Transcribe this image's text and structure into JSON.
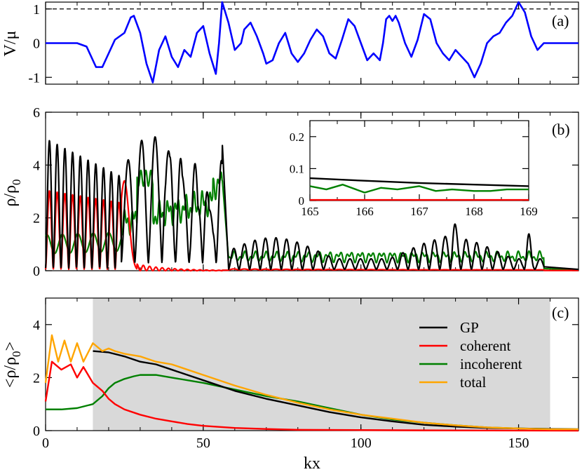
{
  "chart_data": [
    {
      "panel_label": "(a)",
      "type": "line",
      "ylabel": "V/μ",
      "xlim": [
        0,
        169
      ],
      "ylim": [
        -1.2,
        1.2
      ],
      "yticks": [
        -1,
        0,
        1
      ],
      "ytick_labels": [
        "-1",
        "0",
        "1"
      ],
      "reference_line": {
        "y": 1,
        "style": "dashed",
        "color": "#000000"
      },
      "series": [
        {
          "name": "V",
          "color": "#0000ff",
          "x": [
            0,
            10,
            13,
            16,
            18,
            20,
            22,
            25,
            27,
            28,
            30,
            32,
            34,
            36,
            38,
            40,
            42,
            44,
            46,
            48,
            50,
            52,
            54,
            55,
            56,
            58,
            60,
            62,
            63,
            65,
            67,
            69,
            70,
            72,
            74,
            76,
            78,
            80,
            82,
            84,
            86,
            88,
            90,
            92,
            94,
            96,
            98,
            100,
            102,
            104,
            106,
            107,
            108,
            109,
            110,
            111,
            112,
            114,
            116,
            118,
            120,
            122,
            124,
            126,
            128,
            130,
            132,
            134,
            136,
            138,
            140,
            142,
            144,
            146,
            148,
            150,
            152,
            154,
            156,
            158,
            169
          ],
          "y": [
            0,
            0,
            -0.1,
            -0.7,
            -0.7,
            -0.3,
            0.1,
            0.3,
            0.75,
            0.8,
            0.3,
            -0.6,
            -1.15,
            -0.2,
            0.2,
            -0.4,
            -0.7,
            -0.2,
            -0.4,
            0.3,
            0.5,
            -0.3,
            -0.9,
            0.0,
            1.2,
            0.6,
            -0.2,
            0.0,
            0.4,
            0.6,
            0.2,
            -0.3,
            -0.6,
            -0.5,
            0.0,
            0.3,
            -0.3,
            -0.55,
            -0.3,
            0.1,
            0.4,
            0.2,
            -0.3,
            -0.45,
            0.1,
            0.7,
            0.5,
            0.0,
            -0.5,
            -0.3,
            -0.5,
            0.0,
            0.7,
            0.8,
            0.65,
            0.8,
            0.6,
            0.0,
            -0.4,
            0.1,
            0.85,
            0.7,
            0.0,
            -0.3,
            -0.5,
            -0.2,
            -0.4,
            -0.6,
            -1.0,
            -0.6,
            0.0,
            0.2,
            0.3,
            0.6,
            0.8,
            1.2,
            0.9,
            0.2,
            -0.2,
            0.0,
            0
          ]
        }
      ]
    },
    {
      "panel_label": "(b)",
      "type": "line",
      "ylabel": "ρ/ρ",
      "ylabel_sub": "0",
      "xlim": [
        0,
        169
      ],
      "ylim": [
        0,
        6
      ],
      "yticks": [
        0,
        2,
        4,
        6
      ],
      "ytick_labels": [
        "0",
        "2",
        "4",
        "6"
      ],
      "series": [
        {
          "name": "GP",
          "color": "#000000"
        },
        {
          "name": "coherent",
          "color": "#ff0000"
        },
        {
          "name": "incoherent",
          "color": "#008000"
        }
      ],
      "inset": {
        "xlim": [
          165,
          169
        ],
        "ylim": [
          0,
          0.25
        ],
        "xticks": [
          165,
          166,
          167,
          168,
          169
        ],
        "xtick_labels": [
          "165",
          "166",
          "167",
          "168",
          "169"
        ],
        "yticks": [
          0,
          0.1,
          0.2
        ],
        "ytick_labels": [
          "0",
          "0.1",
          "0.2"
        ],
        "series": [
          {
            "name": "GP",
            "color": "#000000",
            "x": [
              165,
              166,
              167,
              168,
              169
            ],
            "y": [
              0.07,
              0.062,
              0.055,
              0.05,
              0.045
            ]
          },
          {
            "name": "incoherent",
            "color": "#008000",
            "x": [
              165,
              165.3,
              165.6,
              166,
              166.3,
              166.6,
              167,
              167.3,
              167.6,
              168,
              168.3,
              168.6,
              169
            ],
            "y": [
              0.045,
              0.035,
              0.05,
              0.025,
              0.04,
              0.035,
              0.045,
              0.03,
              0.035,
              0.03,
              0.03,
              0.035,
              0.035
            ]
          },
          {
            "name": "coherent",
            "color": "#ff0000",
            "x": [
              165,
              169
            ],
            "y": [
              0.002,
              0.002
            ]
          }
        ]
      }
    },
    {
      "panel_label": "(c)",
      "type": "line",
      "ylabel": "<ρ/ρ",
      "ylabel_sub": "0",
      "ylabel_end": ">",
      "xlabel": "kx",
      "xlim": [
        0,
        169
      ],
      "ylim": [
        0,
        5
      ],
      "xticks": [
        0,
        50,
        100,
        150
      ],
      "xtick_labels": [
        "0",
        "50",
        "100",
        "150"
      ],
      "yticks": [
        0,
        2,
        4
      ],
      "ytick_labels": [
        "0",
        "2",
        "4"
      ],
      "shaded_region": {
        "x": [
          15,
          160
        ],
        "color": "#d9d9d9"
      },
      "legend": [
        "GP",
        "coherent",
        "incoherent",
        "total"
      ],
      "legend_position": "top-right",
      "series": [
        {
          "name": "GP",
          "color": "#000000",
          "x": [
            15,
            20,
            25,
            30,
            35,
            40,
            50,
            60,
            70,
            80,
            90,
            100,
            110,
            120,
            130,
            140,
            150,
            160,
            169
          ],
          "y": [
            3.0,
            2.95,
            2.8,
            2.6,
            2.5,
            2.3,
            1.9,
            1.5,
            1.2,
            0.95,
            0.7,
            0.5,
            0.35,
            0.22,
            0.15,
            0.1,
            0.08,
            0.06,
            0.05
          ]
        },
        {
          "name": "coherent",
          "color": "#ff0000",
          "x": [
            0,
            2,
            5,
            8,
            10,
            12,
            15,
            18,
            20,
            22,
            25,
            30,
            35,
            40,
            45,
            50,
            60,
            70,
            80,
            100,
            120,
            169
          ],
          "y": [
            1.1,
            2.6,
            2.3,
            2.5,
            2.0,
            2.4,
            1.8,
            1.5,
            1.2,
            1.0,
            0.8,
            0.6,
            0.45,
            0.35,
            0.25,
            0.18,
            0.1,
            0.06,
            0.03,
            0.02,
            0.01,
            0.0
          ]
        },
        {
          "name": "incoherent",
          "color": "#008000",
          "x": [
            0,
            5,
            10,
            15,
            18,
            20,
            22,
            25,
            28,
            30,
            35,
            40,
            50,
            60,
            70,
            80,
            90,
            100,
            110,
            120,
            130,
            140,
            150,
            160,
            169
          ],
          "y": [
            0.8,
            0.8,
            0.85,
            1.0,
            1.3,
            1.6,
            1.8,
            1.95,
            2.05,
            2.1,
            2.1,
            2.0,
            1.8,
            1.55,
            1.3,
            1.1,
            0.85,
            0.6,
            0.42,
            0.3,
            0.2,
            0.12,
            0.08,
            0.06,
            0.05
          ]
        },
        {
          "name": "total",
          "color": "#ffa500",
          "x": [
            0,
            2,
            4,
            6,
            8,
            10,
            12,
            15,
            18,
            20,
            22,
            25,
            30,
            35,
            40,
            50,
            60,
            70,
            80,
            90,
            100,
            110,
            120,
            130,
            140,
            150,
            160,
            169
          ],
          "y": [
            1.8,
            3.6,
            2.6,
            3.4,
            2.6,
            3.3,
            2.6,
            3.3,
            3.0,
            3.1,
            3.0,
            2.9,
            2.8,
            2.6,
            2.5,
            2.1,
            1.7,
            1.35,
            1.05,
            0.8,
            0.6,
            0.45,
            0.3,
            0.2,
            0.12,
            0.08,
            0.05,
            0.05
          ]
        }
      ]
    }
  ]
}
